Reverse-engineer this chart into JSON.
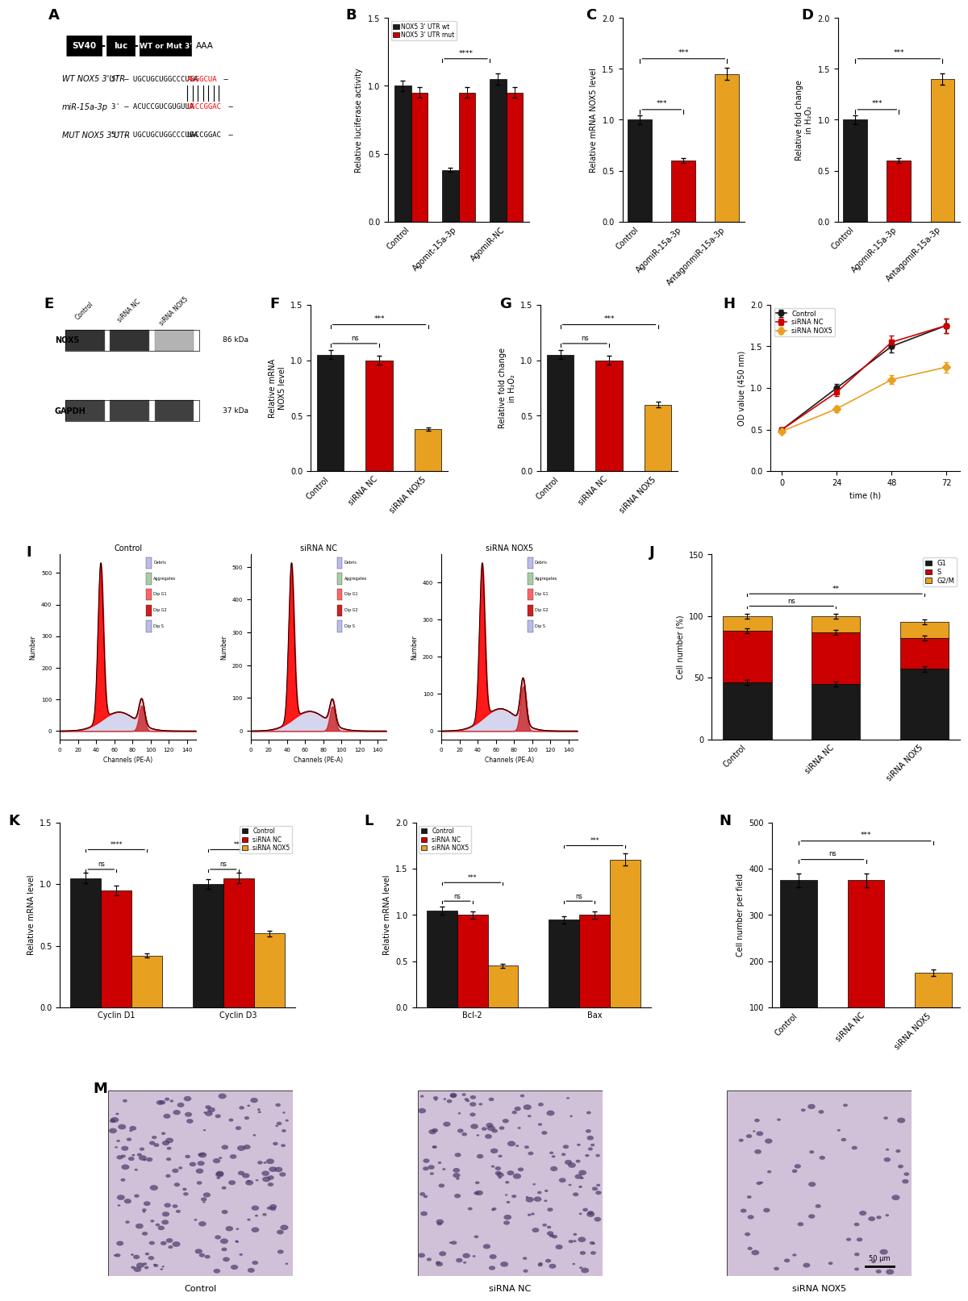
{
  "panel_labels": [
    "A",
    "B",
    "C",
    "D",
    "E",
    "F",
    "G",
    "H",
    "I",
    "J",
    "K",
    "L",
    "M",
    "N"
  ],
  "B": {
    "title": "",
    "ylabel": "Relative luciferase activity",
    "xlabel": "",
    "categories": [
      "Control",
      "Agomit-15a-3p",
      "AgomiR-NC"
    ],
    "series": [
      {
        "name": "NOX5 3' UTR wt",
        "color": "#1a1a1a",
        "values": [
          1.0,
          0.38,
          1.05
        ]
      },
      {
        "name": "NOX5 3' UTR mut",
        "color": "#cc0000",
        "values": [
          0.95,
          0.95,
          0.95
        ]
      }
    ],
    "ylim": [
      0,
      1.5
    ],
    "yticks": [
      0.0,
      0.5,
      1.0,
      1.5
    ]
  },
  "C": {
    "title": "",
    "ylabel": "Relative mRNA NOX5 level",
    "xlabel": "",
    "bar_colors": [
      "#1a1a1a",
      "#cc0000",
      "#e8a020"
    ],
    "bar_values": [
      1.0,
      0.6,
      1.45
    ],
    "ylim": [
      0,
      2.0
    ],
    "yticks": [
      0.0,
      0.5,
      1.0,
      1.5,
      2.0
    ],
    "categories": [
      "Control",
      "AgomiR-15a-3p",
      "AntagonmiR-15a-3p"
    ]
  },
  "D": {
    "title": "",
    "ylabel": "Relative fold change\nin H₂O₂",
    "xlabel": "",
    "bar_colors": [
      "#1a1a1a",
      "#cc0000",
      "#e8a020"
    ],
    "bar_values": [
      1.0,
      0.6,
      1.4
    ],
    "ylim": [
      0,
      2.0
    ],
    "yticks": [
      0.0,
      0.5,
      1.0,
      1.5,
      2.0
    ],
    "categories": [
      "Control",
      "AgomiR-15a-3p",
      "AntagomiR-15a-3p"
    ]
  },
  "F": {
    "title": "",
    "ylabel": "Relative mRNA\nNOX5 level",
    "xlabel": "",
    "bar_colors": [
      "#1a1a1a",
      "#cc0000",
      "#e8a020"
    ],
    "bar_values": [
      1.05,
      1.0,
      0.38
    ],
    "ylim": [
      0,
      1.5
    ],
    "yticks": [
      0.0,
      0.5,
      1.0,
      1.5
    ],
    "categories": [
      "Control",
      "siRNA NC",
      "siRNA NOX5"
    ]
  },
  "G": {
    "title": "",
    "ylabel": "Relative fold change\nin H₂O₂",
    "xlabel": "",
    "bar_colors": [
      "#1a1a1a",
      "#cc0000",
      "#e8a020"
    ],
    "bar_values": [
      1.05,
      1.0,
      0.6
    ],
    "ylim": [
      0,
      1.5
    ],
    "yticks": [
      0.0,
      0.5,
      1.0,
      1.5
    ],
    "categories": [
      "Control",
      "siRNA NC",
      "siRNA NOX5"
    ]
  },
  "H": {
    "title": "",
    "ylabel": "OD value (450 nm)",
    "xlabel": "time (h)",
    "time_points": [
      0,
      24,
      48,
      72
    ],
    "series": [
      {
        "name": "Control",
        "color": "#1a1a1a",
        "marker": "o",
        "values": [
          0.5,
          1.0,
          1.5,
          1.75
        ]
      },
      {
        "name": "siRNA NC",
        "color": "#cc0000",
        "marker": "s",
        "values": [
          0.5,
          0.95,
          1.55,
          1.75
        ]
      },
      {
        "name": "siRNA NOX5",
        "color": "#e8a020",
        "marker": "D",
        "values": [
          0.48,
          0.75,
          1.1,
          1.25
        ]
      }
    ],
    "ylim": [
      0.0,
      2.0
    ],
    "yticks": [
      0.0,
      0.5,
      1.0,
      1.5,
      2.0
    ]
  },
  "J": {
    "title": "",
    "ylabel": "Cell number (%)",
    "xlabel": "",
    "categories": [
      "Control",
      "siRNA NC",
      "siRNA NOX5"
    ],
    "series": [
      {
        "name": "G1",
        "color": "#1a1a1a",
        "values": [
          46,
          45,
          57
        ]
      },
      {
        "name": "S",
        "color": "#cc0000",
        "values": [
          42,
          42,
          25
        ]
      },
      {
        "name": "G2/M",
        "color": "#e8a020",
        "values": [
          12,
          13,
          13
        ]
      }
    ],
    "ylim": [
      0,
      150
    ],
    "yticks": [
      0,
      50,
      100,
      150
    ]
  },
  "K": {
    "title": "",
    "ylabel": "Relative mRNA level",
    "xlabel": "",
    "groups": [
      "Cyclin D1",
      "Cyclin D3"
    ],
    "series": [
      {
        "name": "Control",
        "color": "#1a1a1a",
        "values": [
          1.05,
          1.0
        ]
      },
      {
        "name": "siRNA NC",
        "color": "#cc0000",
        "values": [
          0.95,
          1.05
        ]
      },
      {
        "name": "siRNA NOX5",
        "color": "#e8a020",
        "values": [
          0.42,
          0.6
        ]
      }
    ],
    "ylim": [
      0,
      1.5
    ],
    "yticks": [
      0.0,
      0.5,
      1.0,
      1.5
    ]
  },
  "L": {
    "title": "",
    "ylabel": "Relative mRNA level",
    "xlabel": "",
    "groups": [
      "Bcl-2",
      "Bax"
    ],
    "series": [
      {
        "name": "Control",
        "color": "#1a1a1a",
        "values": [
          1.05,
          0.95
        ]
      },
      {
        "name": "siRNA NC",
        "color": "#cc0000",
        "values": [
          1.0,
          1.0
        ]
      },
      {
        "name": "siRNA NOX5",
        "color": "#e8a020",
        "values": [
          0.45,
          1.6
        ]
      }
    ],
    "ylim": [
      0,
      2.0
    ],
    "yticks": [
      0.0,
      0.5,
      1.0,
      1.5,
      2.0
    ]
  },
  "N": {
    "title": "",
    "ylabel": "Cell number per field",
    "xlabel": "",
    "bar_colors": [
      "#1a1a1a",
      "#cc0000",
      "#e8a020"
    ],
    "bar_values": [
      375,
      375,
      175
    ],
    "ylim": [
      100,
      500
    ],
    "yticks": [
      100,
      200,
      300,
      400,
      500
    ],
    "categories": [
      "Control",
      "siRNA NC",
      "siRNA NOX5"
    ]
  },
  "M": {
    "titles": [
      "Control",
      "siRNA NC",
      "siRNA NOX5"
    ],
    "n_cells": [
      180,
      170,
      60
    ],
    "seeds": [
      42,
      43,
      44
    ],
    "bg_color": "#d0c0d8",
    "cell_color": "#4a3a6a"
  }
}
